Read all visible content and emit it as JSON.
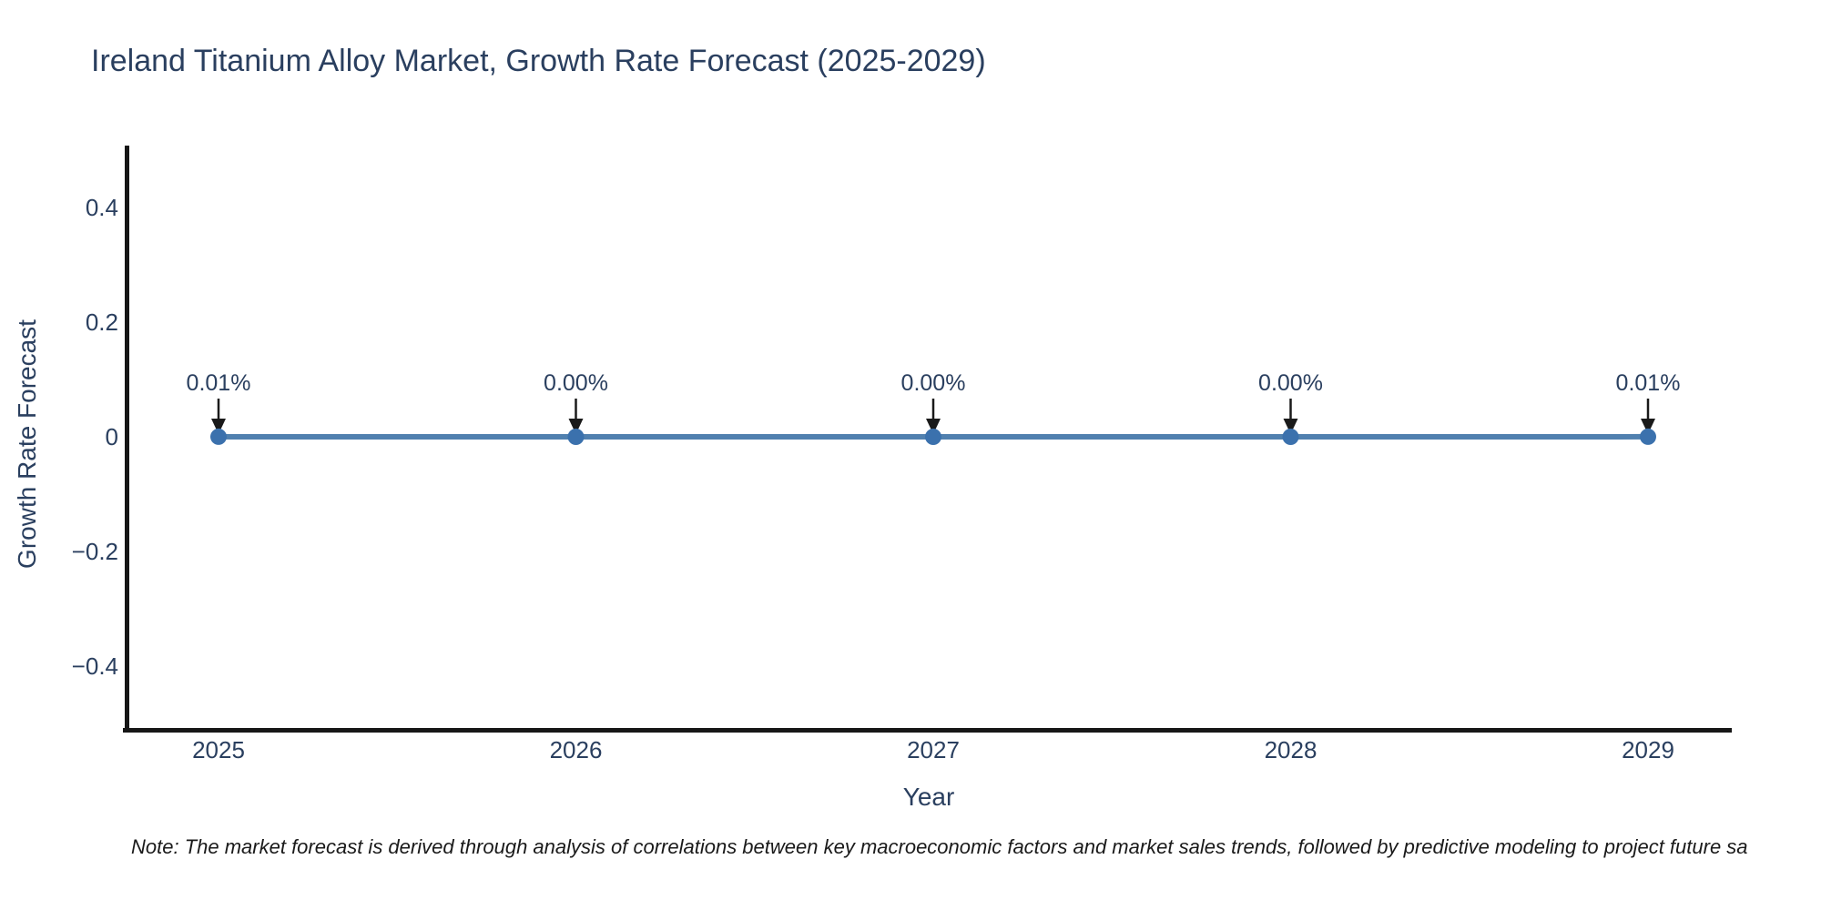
{
  "note": "Note: The market forecast is derived through analysis of correlations between key macroeconomic factors and market sales trends, followed by predictive modeling to project future sa",
  "colors": {
    "text": "#2a3f5f",
    "axis_spine": "#161616",
    "line": "#5080af",
    "marker": "#3b71ad",
    "arrow": "#1a1a1a",
    "note_text": "#1a1a1a",
    "background": "#ffffff"
  },
  "chart_data": {
    "type": "line",
    "title": "Ireland Titanium Alloy Market, Growth Rate Forecast (2025-2029)",
    "xlabel": "Year",
    "ylabel": "Growth Rate Forecast",
    "x": [
      2025,
      2026,
      2027,
      2028,
      2029
    ],
    "series": [
      {
        "name": "Growth Rate Forecast",
        "values": [
          0.0001,
          0.0,
          0.0,
          0.0,
          0.0001
        ]
      }
    ],
    "point_labels": [
      "0.01%",
      "0.00%",
      "0.00%",
      "0.00%",
      "0.01%"
    ],
    "yticks": [
      0.4,
      0.2,
      0,
      -0.2,
      -0.4
    ],
    "ytick_labels": [
      "0.4",
      "0.2",
      "0",
      "−0.2",
      "−0.4"
    ],
    "xtick_labels": [
      "2025",
      "2026",
      "2027",
      "2028",
      "2029"
    ],
    "ylim": [
      -0.51,
      0.51
    ],
    "grid": false,
    "legend_position": "none",
    "annotation_style": "down-arrow-to-point"
  }
}
